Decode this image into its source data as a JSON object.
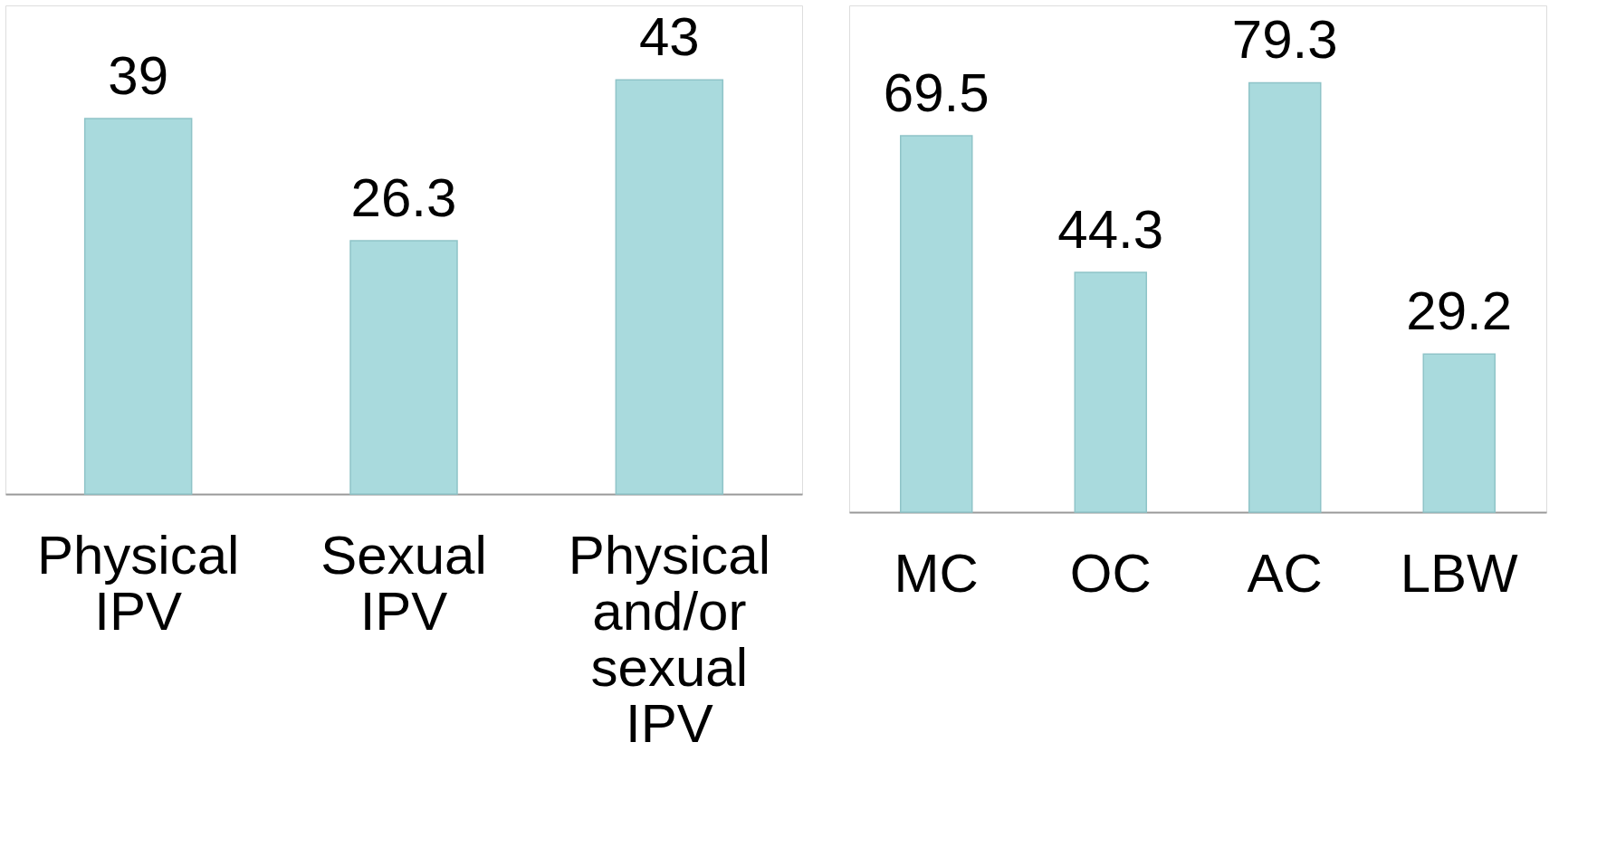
{
  "chart_data": [
    {
      "type": "bar",
      "categories": [
        "Physical IPV",
        "Sexual IPV",
        "Physical and/or sexual IPV"
      ],
      "values": [
        39,
        26.3,
        43
      ],
      "color": "#a9dadd",
      "data_labels": true
    },
    {
      "type": "bar",
      "categories": [
        "MC",
        "OC",
        "AC",
        "LBW"
      ],
      "values": [
        69.5,
        44.3,
        79.3,
        29.2
      ],
      "color": "#a9dadd",
      "data_labels": true
    }
  ]
}
